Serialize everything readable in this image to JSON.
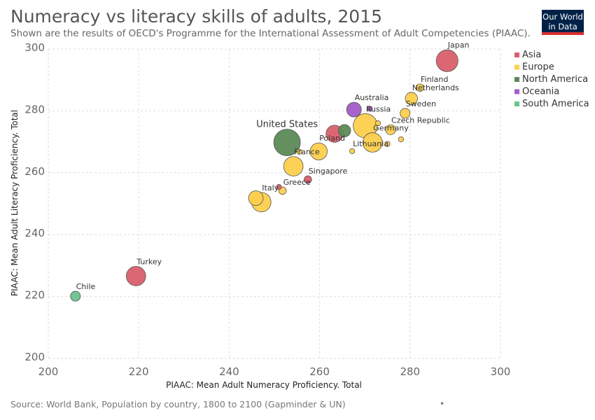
{
  "header": {
    "title": "Numeracy vs literacy skills of adults, 2015",
    "subtitle": "Shown are the results of OECD's Programme for the International Assessment of Adult Competencies (PIAAC).",
    "logo_line1": "Our World",
    "logo_line2": "in Data"
  },
  "footer": {
    "source": "Source: World Bank, Population by country, 1800 to 2100 (Gapminder & UN)",
    "dot": "•"
  },
  "colors": {
    "Asia": "#d95f6b",
    "Europe": "#fccf4d",
    "North America": "#5b8a55",
    "Oceania": "#a45cc8",
    "South America": "#6cc28e"
  },
  "chart_data": {
    "type": "scatter",
    "xlabel": "PIAAC: Mean Adult Numeracy Proficiency. Total",
    "ylabel": "PIAAC: Mean Adult Literacy Proficiency. Total",
    "xlim": [
      200,
      300
    ],
    "ylim": [
      200,
      300
    ],
    "xticks": [
      200,
      220,
      240,
      260,
      280,
      300
    ],
    "yticks": [
      200,
      220,
      240,
      260,
      280,
      300
    ],
    "grid": true,
    "legend_position": "right",
    "legend": [
      "Asia",
      "Europe",
      "North America",
      "Oceania",
      "South America"
    ],
    "points": [
      {
        "label": "Japan",
        "continent": "Asia",
        "x": 288.2,
        "y": 296.2,
        "population_rank": 8
      },
      {
        "label": "Finland",
        "continent": "Europe",
        "x": 282.2,
        "y": 287.5,
        "population_rank": 2
      },
      {
        "label": "Netherlands",
        "continent": "Europe",
        "x": 280.3,
        "y": 284.0,
        "population_rank": 4
      },
      {
        "label": "Sweden",
        "continent": "Europe",
        "x": 278.9,
        "y": 279.2,
        "population_rank": 3
      },
      {
        "label": "Australia",
        "continent": "Oceania",
        "x": 267.6,
        "y": 280.4,
        "population_rank": 5
      },
      {
        "label": "Russia",
        "continent": "Europe",
        "x": 270.1,
        "y": 275.2,
        "population_rank": 9
      },
      {
        "label": "Czech Republic",
        "continent": "Europe",
        "x": 275.7,
        "y": 273.9,
        "population_rank": 3
      },
      {
        "label": "United States",
        "continent": "North America",
        "x": 252.8,
        "y": 269.8,
        "population_rank": 10
      },
      {
        "label": "Germany",
        "continent": "Europe",
        "x": 271.7,
        "y": 269.8,
        "population_rank": 7
      },
      {
        "label": "Poland",
        "continent": "Europe",
        "x": 259.8,
        "y": 266.9,
        "population_rank": 6
      },
      {
        "label": "Lithuania",
        "continent": "Europe",
        "x": 267.2,
        "y": 267.0,
        "population_rank": 1
      },
      {
        "label": "France",
        "continent": "Europe",
        "x": 254.2,
        "y": 262.1,
        "population_rank": 7
      },
      {
        "label": "Singapore",
        "continent": "Asia",
        "x": 257.4,
        "y": 257.8,
        "population_rank": 2
      },
      {
        "label": "Greece",
        "continent": "Europe",
        "x": 251.8,
        "y": 254.2,
        "population_rank": 2
      },
      {
        "label": "Italy",
        "continent": "Europe",
        "x": 247.1,
        "y": 250.5,
        "population_rank": 7
      },
      {
        "label": "Turkey",
        "continent": "Asia",
        "x": 219.4,
        "y": 226.6,
        "population_rank": 7
      },
      {
        "label": "Chile",
        "continent": "South America",
        "x": 206.0,
        "y": 220.1,
        "population_rank": 3
      },
      {
        "label": "",
        "continent": "Asia",
        "x": 263.3,
        "y": 272.6,
        "population_rank": 6
      },
      {
        "label": "",
        "continent": "North America",
        "x": 265.5,
        "y": 273.6,
        "population_rank": 4
      },
      {
        "label": "",
        "continent": "Europe",
        "x": 245.9,
        "y": 251.8,
        "population_rank": 5
      },
      {
        "label": "",
        "continent": "Asia",
        "x": 251.0,
        "y": 255.4,
        "population_rank": 1
      },
      {
        "label": "",
        "continent": "Europe",
        "x": 255.5,
        "y": 266.8,
        "population_rank": 1
      },
      {
        "label": "",
        "continent": "Oceania",
        "x": 271.1,
        "y": 280.7,
        "population_rank": 1
      },
      {
        "label": "",
        "continent": "Europe",
        "x": 272.9,
        "y": 276.0,
        "population_rank": 1
      },
      {
        "label": "",
        "continent": "Europe",
        "x": 275.0,
        "y": 269.3,
        "population_rank": 1
      },
      {
        "label": "",
        "continent": "Europe",
        "x": 278.0,
        "y": 270.8,
        "population_rank": 1
      }
    ]
  }
}
